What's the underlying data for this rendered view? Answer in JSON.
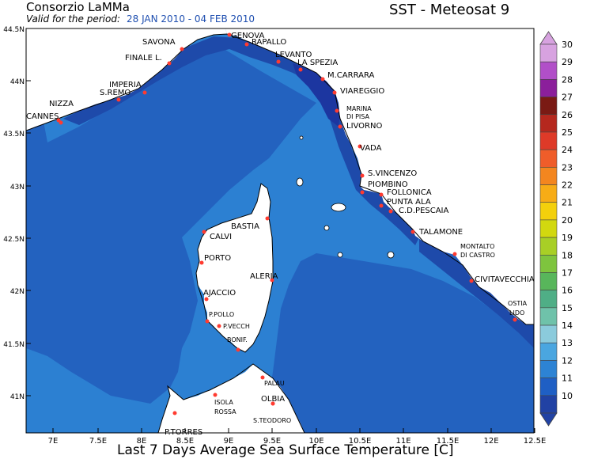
{
  "header": {
    "org": "Consorzio LaMMa",
    "valid_label": "Valid for the period:",
    "valid_period": "28 JAN 2010 - 04 FEB 2010",
    "product": "SST - Meteosat 9"
  },
  "footer": {
    "title": "Last 7 Days Average Sea Surface Temperature [C]"
  },
  "map": {
    "lon_ticks": [
      "7E",
      "7.5E",
      "8E",
      "8.5E",
      "9E",
      "9.5E",
      "10E",
      "10.5E",
      "11E",
      "11.5E",
      "12E",
      "12.5E"
    ],
    "lat_ticks": [
      "44.5N",
      "44N",
      "43.5N",
      "43N",
      "42.5N",
      "42N",
      "41.5N",
      "41N"
    ],
    "places": [
      {
        "name": "GENOVA"
      },
      {
        "name": "SAVONA"
      },
      {
        "name": "RAPALLO"
      },
      {
        "name": "FINALE L."
      },
      {
        "name": "LEVANTO"
      },
      {
        "name": "LA SPEZIA"
      },
      {
        "name": "M.CARRARA"
      },
      {
        "name": "IMPERIA"
      },
      {
        "name": "S.REMO"
      },
      {
        "name": "VIAREGGIO"
      },
      {
        "name": "NIZZA"
      },
      {
        "name": "MARINA"
      },
      {
        "name": "DI PISA"
      },
      {
        "name": "CANNES"
      },
      {
        "name": "LIVORNO"
      },
      {
        "name": "VADA"
      },
      {
        "name": "S.VINCENZO"
      },
      {
        "name": "PIOMBINO"
      },
      {
        "name": "FOLLONICA"
      },
      {
        "name": "PUNTA ALA"
      },
      {
        "name": "C.D.PESCAIA"
      },
      {
        "name": "BASTIA"
      },
      {
        "name": "CALVI"
      },
      {
        "name": "TALAMONE"
      },
      {
        "name": "MONTALTO"
      },
      {
        "name": "DI CASTRO"
      },
      {
        "name": "PORTO"
      },
      {
        "name": "ALERIA"
      },
      {
        "name": "CIVITAVECCHIA"
      },
      {
        "name": "AJACCIO"
      },
      {
        "name": "OSTIA"
      },
      {
        "name": "LIDO"
      },
      {
        "name": "P.POLLO"
      },
      {
        "name": "P.VECCH"
      },
      {
        "name": "BONIF."
      },
      {
        "name": "PALAU"
      },
      {
        "name": "OLBIA"
      },
      {
        "name": "ISOLA"
      },
      {
        "name": "ROSSA"
      },
      {
        "name": "S.TEODORO"
      },
      {
        "name": "P.TORRES"
      }
    ]
  },
  "colorbar": {
    "labels": [
      "30",
      "29",
      "28",
      "27",
      "26",
      "25",
      "24",
      "23",
      "22",
      "21",
      "20",
      "19",
      "18",
      "17",
      "16",
      "15",
      "14",
      "13",
      "12",
      "11",
      "10"
    ],
    "colors": [
      "#d7a2e0",
      "#b14fc8",
      "#8b1f9b",
      "#7a1a14",
      "#b5281e",
      "#de3a28",
      "#ef5d2a",
      "#f3861f",
      "#f7ac16",
      "#f3d00c",
      "#d2d80f",
      "#a8cf26",
      "#7ec43e",
      "#58b65b",
      "#4fae86",
      "#6fc2aa",
      "#8bcbdc",
      "#4aa6e0",
      "#2d83d4",
      "#1f5fc4",
      "#2142a4"
    ]
  },
  "sst_colors": {
    "warm_13": "#2c80d2",
    "mid_12": "#2362bf",
    "cold_11": "#1e4aaa",
    "coldest_10": "#1c36a0",
    "land": "#ffffff"
  }
}
